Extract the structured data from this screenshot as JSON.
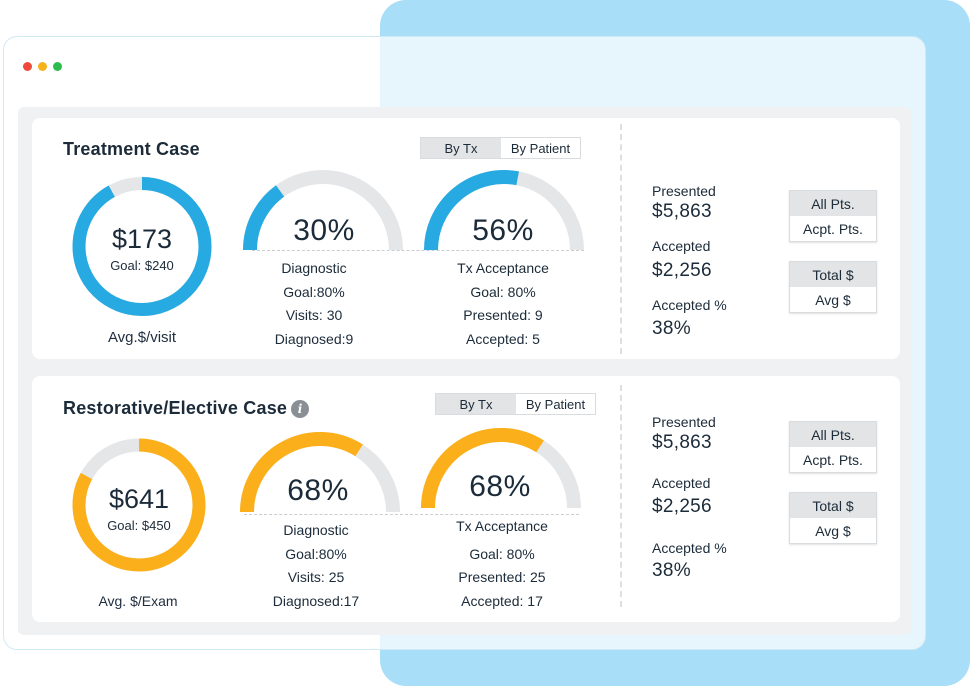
{
  "window_controls": {
    "close_color": "#f04a3a",
    "minimize_color": "#f7b21b",
    "maximize_color": "#2dbd4e"
  },
  "colors": {
    "blue": "#27aae1",
    "orange": "#fbb01b",
    "track": "#e5e6e8"
  },
  "treatment": {
    "title": "Treatment Case",
    "toggle": {
      "by_tx": "By Tx",
      "by_patient": "By Patient"
    },
    "donut": {
      "value": "$173",
      "goal": "Goal: $240",
      "caption": "Avg.$/visit",
      "fraction": 0.92
    },
    "diagnostic": {
      "percent": "30%",
      "fraction": 0.3,
      "name": "Diagnostic",
      "goal": "Goal:80%",
      "visits": "Visits: 30",
      "diagnosed": "Diagnosed:9"
    },
    "tx_acceptance": {
      "percent": "56%",
      "fraction": 0.56,
      "name": "Tx Acceptance",
      "goal": "Goal: 80%",
      "presented": "Presented: 9",
      "accepted": "Accepted: 5"
    },
    "stats": {
      "presented_label": "Presented",
      "presented_value": "$5,863",
      "accepted_label": "Accepted",
      "accepted_value": "$2,256",
      "accepted_pct_label": "Accepted %",
      "accepted_pct_value": "38%"
    },
    "group1": {
      "a": "All Pts.",
      "b": "Acpt. Pts."
    },
    "group2": {
      "a": "Total $",
      "b": "Avg $"
    }
  },
  "restorative": {
    "title": "Restorative/Elective Case",
    "info_icon": "info-icon",
    "toggle": {
      "by_tx": "By Tx",
      "by_patient": "By Patient"
    },
    "donut": {
      "value": "$641",
      "goal": "Goal: $450",
      "caption": "Avg. $/Exam",
      "fraction": 0.83
    },
    "diagnostic": {
      "percent": "68%",
      "fraction": 0.68,
      "name": "Diagnostic",
      "goal": "Goal:80%",
      "visits": "Visits: 25",
      "diagnosed": "Diagnosed:17"
    },
    "tx_acceptance": {
      "percent": "68%",
      "fraction": 0.68,
      "name": "Tx Acceptance",
      "goal": "Goal: 80%",
      "presented": "Presented: 25",
      "accepted": "Accepted: 17"
    },
    "stats": {
      "presented_label": "Presented",
      "presented_value": "$5,863",
      "accepted_label": "Accepted",
      "accepted_value": "$2,256",
      "accepted_pct_label": "Accepted %",
      "accepted_pct_value": "38%"
    },
    "group1": {
      "a": "All Pts.",
      "b": "Acpt. Pts."
    },
    "group2": {
      "a": "Total $",
      "b": "Avg $"
    }
  }
}
